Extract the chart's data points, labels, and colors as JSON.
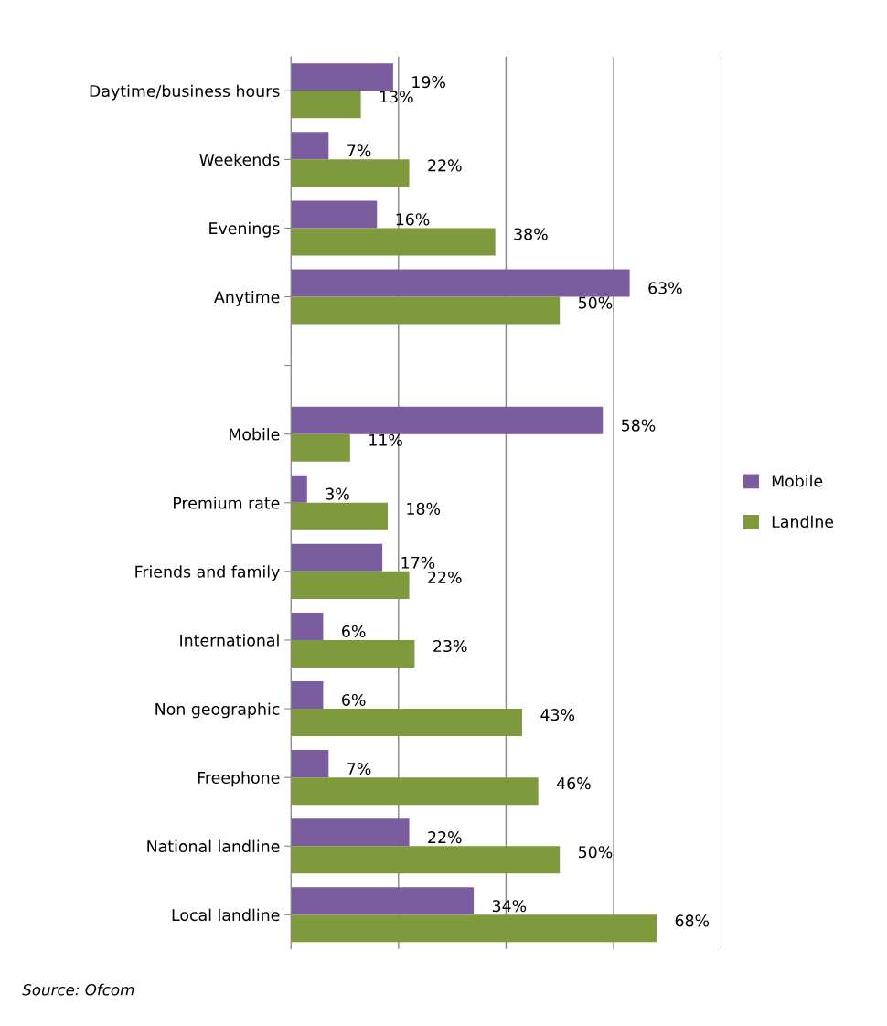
{
  "chart_data": {
    "type": "bar",
    "orientation": "horizontal",
    "categories": [
      "Daytime/business hours",
      "Weekends",
      "Evenings",
      "Anytime",
      null,
      "Mobile",
      "Premium rate",
      "Friends and family",
      "International",
      "Non geographic",
      "Freephone",
      "National landline",
      "Local landline"
    ],
    "series": [
      {
        "name": "Mobile",
        "color": "#7b5c9e",
        "values": [
          19,
          7,
          16,
          63,
          null,
          58,
          3,
          17,
          6,
          6,
          7,
          22,
          34
        ],
        "value_labels": [
          "19%",
          "7%",
          "16%",
          "63%",
          null,
          "58%",
          "3%",
          "17%",
          "6%",
          "6%",
          "7%",
          "22%",
          "34%"
        ]
      },
      {
        "name": "Landlne",
        "color": "#7f9a3c",
        "values": [
          13,
          22,
          38,
          50,
          null,
          11,
          18,
          22,
          23,
          43,
          46,
          50,
          68
        ],
        "value_labels": [
          "13%",
          "22%",
          "38%",
          "50%",
          null,
          "11%",
          "18%",
          "22%",
          "23%",
          "43%",
          "46%",
          "50%",
          "68%"
        ]
      }
    ],
    "xlim": [
      0,
      80
    ],
    "xticks": [
      {
        "value": 0,
        "label": null
      },
      {
        "value": 20,
        "label": null
      },
      {
        "value": 40,
        "label": null
      },
      {
        "value": 60,
        "label": null
      },
      {
        "value": 80,
        "label": null
      }
    ],
    "tick_labels": "y",
    "grid": "x",
    "legend": "right",
    "annotations": [
      "Source: Ofcom"
    ]
  }
}
